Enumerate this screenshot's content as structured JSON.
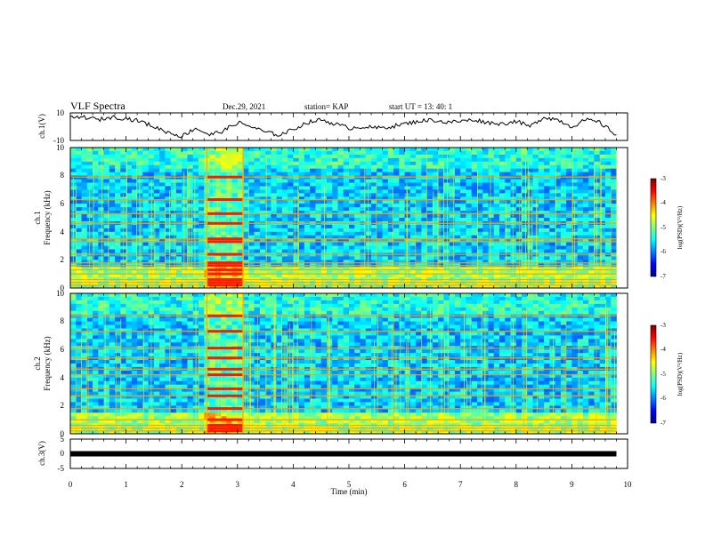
{
  "header": {
    "title": "VLF Spectra",
    "date": "Dec.29, 2021",
    "station": "station= KAP",
    "start": "start  UT  =   13: 40: 1"
  },
  "chart_data": [
    {
      "id": "ch1-waveform",
      "type": "line",
      "ylabel": "ch.1(V)",
      "ylim": [
        -10,
        10
      ],
      "yticks": [
        "10",
        "-10"
      ],
      "xlim": [
        0,
        10
      ],
      "data_extent_min": [
        0,
        9.8
      ],
      "series": [
        {
          "x": [
            0,
            0.25,
            0.5,
            0.75,
            1.0,
            1.25,
            1.5,
            1.75,
            2.0,
            2.25,
            2.5,
            2.75,
            3.0,
            3.25,
            3.5,
            3.75,
            4.0,
            4.25,
            4.5,
            4.75,
            5.0,
            5.25,
            5.5,
            5.75,
            6.0,
            6.25,
            6.5,
            6.75,
            7.0,
            7.25,
            7.5,
            7.75,
            8.0,
            8.25,
            8.5,
            8.75,
            9.0,
            9.25,
            9.5,
            9.8
          ],
          "y": [
            6,
            7,
            5,
            7,
            6,
            4,
            0,
            -4,
            -7,
            -1,
            -6,
            -3,
            3,
            0,
            -4,
            -6,
            -2,
            3,
            5,
            2,
            -1,
            0,
            -1,
            0,
            2,
            4,
            5,
            3,
            4,
            5,
            3,
            2,
            4,
            0,
            7,
            5,
            0,
            5,
            3,
            -6
          ]
        }
      ]
    },
    {
      "id": "ch1-spectrogram",
      "type": "heatmap",
      "ylabel": "ch.1\nFrequency (kHz)",
      "ylim": [
        0,
        10
      ],
      "yticks": [
        "0",
        "2",
        "4",
        "6",
        "8",
        "10"
      ],
      "xlim": [
        0,
        10
      ],
      "data_extent_min": [
        0,
        9.8
      ],
      "colorbar": {
        "label": "log(PSD)(V²/Hz)",
        "range": [
          -7,
          -3
        ],
        "ticks": [
          "-3",
          "-4",
          "-5",
          "-6",
          "-7"
        ]
      },
      "lines_khz": [
        0.2,
        0.4,
        0.6,
        1.0,
        1.3,
        1.6,
        1.8,
        2.4,
        3.3,
        3.5,
        4.6,
        5.3,
        6.3,
        7.9
      ],
      "burst_min": [
        2.45,
        3.1
      ]
    },
    {
      "id": "ch2-spectrogram",
      "type": "heatmap",
      "ylabel": "ch.2\nFrequency (kHz)",
      "ylim": [
        0,
        10
      ],
      "yticks": [
        "0",
        "2",
        "4",
        "6",
        "8",
        "10"
      ],
      "xlim": [
        0,
        10
      ],
      "data_extent_min": [
        0,
        9.8
      ],
      "colorbar": {
        "label": "log(PSD)(V²/Hz)",
        "range": [
          -7,
          -3
        ],
        "ticks": [
          "-3",
          "-4",
          "-5",
          "-6",
          "-7"
        ]
      },
      "lines_khz": [
        0.2,
        0.4,
        0.6,
        1.0,
        1.8,
        2.7,
        3.2,
        4.2,
        4.6,
        5.4,
        6.1,
        7.3,
        8.4
      ],
      "burst_min": [
        2.45,
        3.1
      ]
    },
    {
      "id": "ch3-waveform",
      "type": "line",
      "ylabel": "ch.3(V)",
      "ylim": [
        -5,
        5
      ],
      "yticks": [
        "5",
        "0",
        "-5"
      ],
      "xlim": [
        0,
        10
      ],
      "data_extent_min": [
        0,
        9.8
      ],
      "series": [
        {
          "x": [
            0,
            9.8
          ],
          "y": [
            0,
            0
          ]
        }
      ]
    }
  ],
  "x_axis": {
    "label": "Time  (min)",
    "ticks": [
      "0",
      "1",
      "2",
      "3",
      "4",
      "5",
      "6",
      "7",
      "8",
      "9",
      "10"
    ]
  },
  "colors": {
    "ink": "#000000",
    "jet": [
      "#00008f",
      "#0000ff",
      "#007fff",
      "#00ffff",
      "#7fff7f",
      "#ffff00",
      "#ff7f00",
      "#ff0000",
      "#7f0000"
    ]
  }
}
